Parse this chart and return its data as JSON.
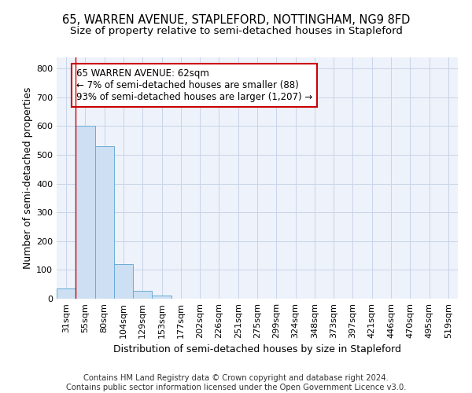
{
  "title": "65, WARREN AVENUE, STAPLEFORD, NOTTINGHAM, NG9 8FD",
  "subtitle": "Size of property relative to semi-detached houses in Stapleford",
  "xlabel": "Distribution of semi-detached houses by size in Stapleford",
  "ylabel": "Number of semi-detached properties",
  "bar_color": "#cddff2",
  "bar_edge_color": "#6aacd6",
  "categories": [
    "31sqm",
    "55sqm",
    "80sqm",
    "104sqm",
    "129sqm",
    "153sqm",
    "177sqm",
    "202sqm",
    "226sqm",
    "251sqm",
    "275sqm",
    "299sqm",
    "324sqm",
    "348sqm",
    "373sqm",
    "397sqm",
    "421sqm",
    "446sqm",
    "470sqm",
    "495sqm",
    "519sqm"
  ],
  "values": [
    35,
    600,
    530,
    120,
    27,
    10,
    0,
    0,
    0,
    0,
    0,
    0,
    0,
    0,
    0,
    0,
    0,
    0,
    0,
    0,
    0
  ],
  "ylim": [
    0,
    840
  ],
  "yticks": [
    0,
    100,
    200,
    300,
    400,
    500,
    600,
    700,
    800
  ],
  "red_line_x": 0.5,
  "annotation_text": "65 WARREN AVENUE: 62sqm\n← 7% of semi-detached houses are smaller (88)\n93% of semi-detached houses are larger (1,207) →",
  "annotation_box_facecolor": "#ffffff",
  "annotation_box_edgecolor": "#cc0000",
  "footer_line1": "Contains HM Land Registry data © Crown copyright and database right 2024.",
  "footer_line2": "Contains public sector information licensed under the Open Government Licence v3.0.",
  "bg_color": "#eef2fa",
  "grid_color": "#c8d4e8",
  "title_fontsize": 10.5,
  "subtitle_fontsize": 9.5,
  "ylabel_fontsize": 9,
  "xlabel_fontsize": 9,
  "tick_fontsize": 8,
  "annotation_fontsize": 8.5,
  "footer_fontsize": 7.2
}
